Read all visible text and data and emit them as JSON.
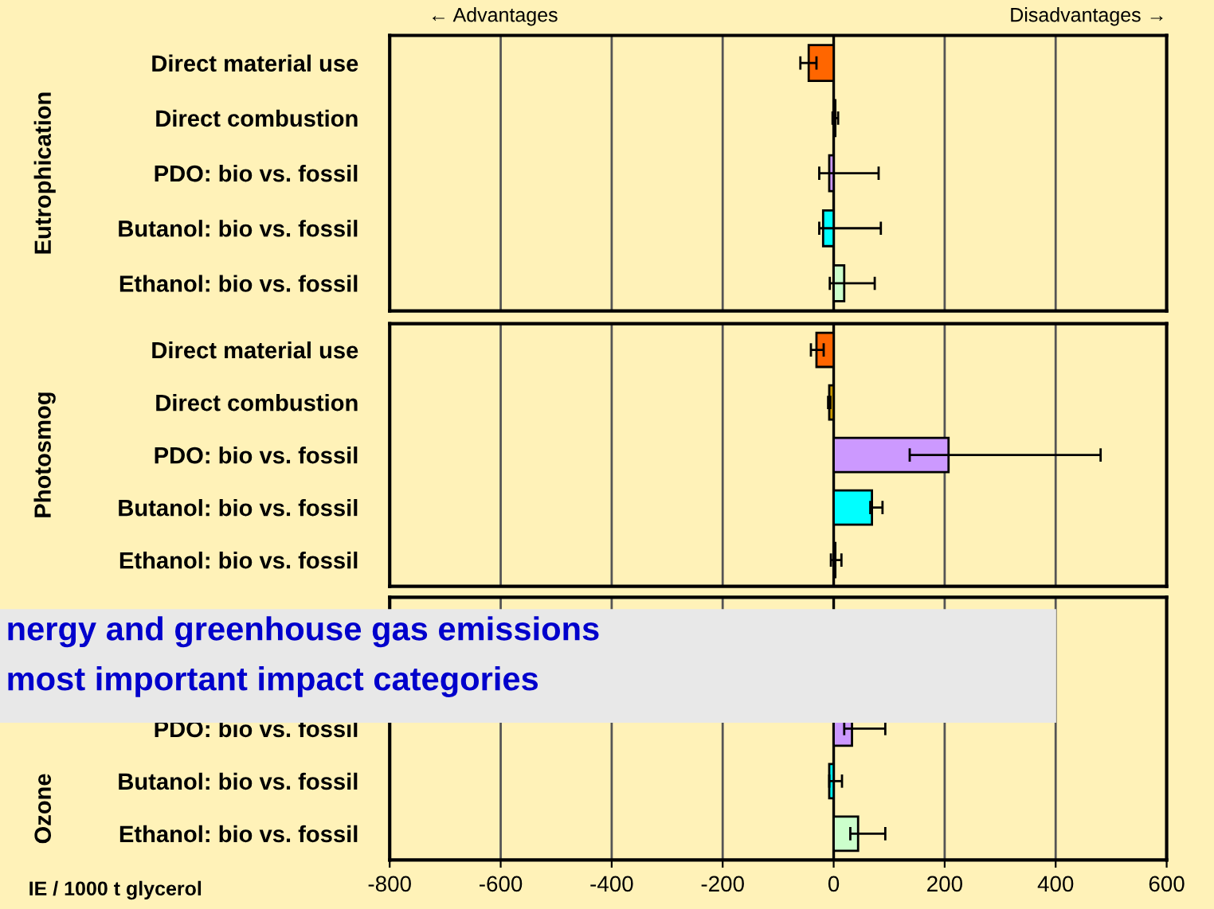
{
  "chart_data": [
    {
      "type": "bar",
      "orientation": "horizontal",
      "ylabel": "Eutrophication",
      "annotations": [
        "← Advantages",
        "Disadvantages →"
      ],
      "categories": [
        "Direct material use",
        "Direct combustion",
        "PDO: bio vs. fossil",
        "Butanol: bio vs. fossil",
        "Ethanol: bio vs. fossil"
      ],
      "values": [
        -45,
        3,
        -8,
        -19,
        19
      ],
      "colors": [
        "#ff6600",
        "#cc9900",
        "#cc99ff",
        "#00ffff",
        "#ccffcc"
      ],
      "errors": [
        [
          -60,
          -31
        ],
        [
          -2,
          8
        ],
        [
          -26,
          81
        ],
        [
          -26,
          85
        ],
        [
          -7,
          74
        ]
      ],
      "xlim": [
        -800,
        600
      ],
      "xticks": [
        -800,
        -600,
        -400,
        -200,
        0,
        200,
        400,
        600
      ],
      "grid": "x",
      "tick_labels": "y"
    },
    {
      "type": "bar",
      "orientation": "horizontal",
      "ylabel": "Photosmog",
      "categories": [
        "Direct material use",
        "Direct combustion",
        "PDO: bio vs. fossil",
        "Butanol: bio vs. fossil",
        "Ethanol: bio vs. fossil"
      ],
      "values": [
        -31,
        -8,
        207,
        69,
        3
      ],
      "colors": [
        "#ff6600",
        "#cc9900",
        "#cc99ff",
        "#00ffff",
        "#ccffcc"
      ],
      "errors": [
        [
          -41,
          -18
        ],
        [
          -10,
          -6
        ],
        [
          137,
          481
        ],
        [
          66,
          88
        ],
        [
          -5,
          14
        ]
      ],
      "xlim": [
        -800,
        600
      ],
      "xticks": [
        -800,
        -600,
        -400,
        -200,
        0,
        200,
        400,
        600
      ],
      "grid": "x",
      "tick_labels": "y"
    },
    {
      "type": "bar",
      "orientation": "horizontal",
      "ylabel": "Ozone",
      "xlabel": "IE / 1000 t glycerol",
      "annotations": [
        "nergy and greenhouse gas emissions",
        "most important impact categories"
      ],
      "categories": [
        null,
        null,
        "PDO: bio vs. fossil",
        "Butanol: bio vs. fossil",
        "Ethanol: bio vs. fossil"
      ],
      "values": [
        null,
        null,
        33,
        -8,
        44
      ],
      "colors": [
        "#ff6600",
        "#cc9900",
        "#cc99ff",
        "#00ffff",
        "#ccffcc"
      ],
      "errors": [
        null,
        null,
        [
          19,
          93
        ],
        [
          -8,
          15
        ],
        [
          30,
          93
        ]
      ],
      "xlim": [
        -800,
        600
      ],
      "xticks": [
        -800,
        -600,
        -400,
        -200,
        0,
        200,
        400,
        600
      ],
      "grid": "x"
    }
  ]
}
